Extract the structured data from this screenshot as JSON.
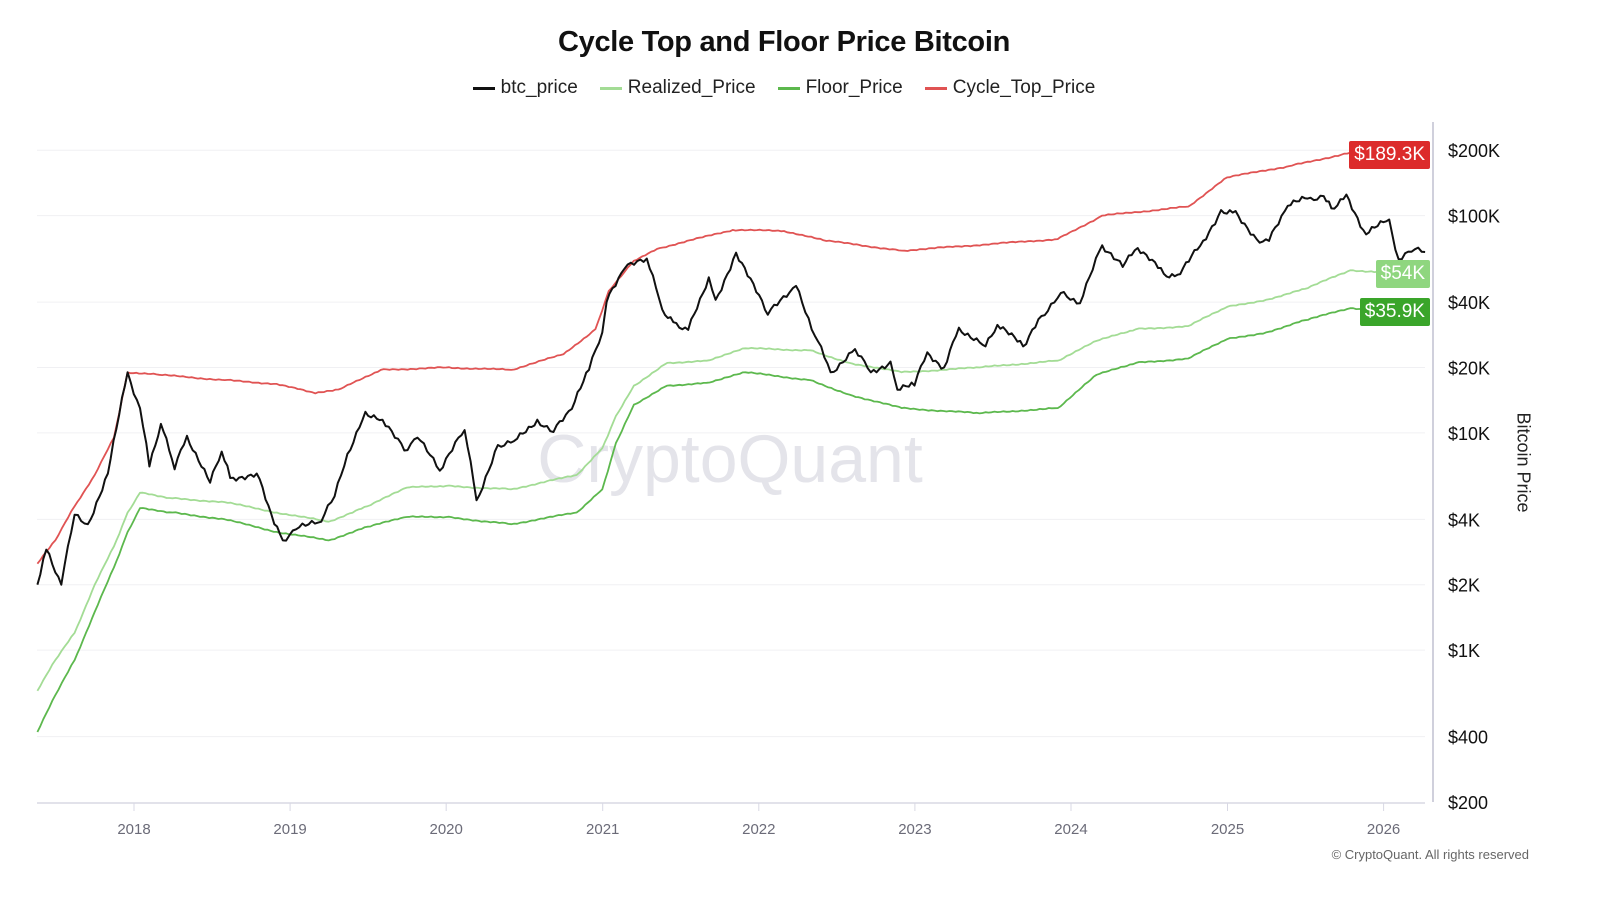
{
  "chart_data": {
    "type": "line",
    "title": "Cycle Top and Floor Price Bitcoin",
    "ylabel": "Bitcoin Price",
    "xlabel": "",
    "y_scale": "log",
    "ylim": [
      200,
      230000
    ],
    "xlim": [
      "2017-05-20",
      "2026-04-08"
    ],
    "grid": true,
    "legend_position": "top",
    "x_ticks": [
      "2018",
      "2019",
      "2020",
      "2021",
      "2022",
      "2023",
      "2024",
      "2025",
      "2026"
    ],
    "y_ticks": [
      {
        "value": 200,
        "label": "$200"
      },
      {
        "value": 400,
        "label": "$400"
      },
      {
        "value": 1000,
        "label": "$1K"
      },
      {
        "value": 2000,
        "label": "$2K"
      },
      {
        "value": 4000,
        "label": "$4K"
      },
      {
        "value": 10000,
        "label": "$10K"
      },
      {
        "value": 20000,
        "label": "$20K"
      },
      {
        "value": 40000,
        "label": "$40K"
      },
      {
        "value": 100000,
        "label": "$100K"
      },
      {
        "value": 200000,
        "label": "$200K"
      }
    ],
    "watermark": "CryptoQuant",
    "series": [
      {
        "name": "btc_price",
        "color": "#111111",
        "last_label": "",
        "points": [
          [
            "2017-05-20",
            2000
          ],
          [
            "2017-06-10",
            2900
          ],
          [
            "2017-07-15",
            2000
          ],
          [
            "2017-08-15",
            4200
          ],
          [
            "2017-09-15",
            3800
          ],
          [
            "2017-11-01",
            6500
          ],
          [
            "2017-12-17",
            19000
          ],
          [
            "2018-01-15",
            13000
          ],
          [
            "2018-02-06",
            7000
          ],
          [
            "2018-03-05",
            11000
          ],
          [
            "2018-04-06",
            6800
          ],
          [
            "2018-05-05",
            9700
          ],
          [
            "2018-06-28",
            5900
          ],
          [
            "2018-07-25",
            8200
          ],
          [
            "2018-08-14",
            6200
          ],
          [
            "2018-10-15",
            6500
          ],
          [
            "2018-11-25",
            3800
          ],
          [
            "2018-12-15",
            3200
          ],
          [
            "2019-01-15",
            3600
          ],
          [
            "2019-03-15",
            3900
          ],
          [
            "2019-04-15",
            5100
          ],
          [
            "2019-05-15",
            8000
          ],
          [
            "2019-06-26",
            12500
          ],
          [
            "2019-08-05",
            11500
          ],
          [
            "2019-09-25",
            8300
          ],
          [
            "2019-10-26",
            9500
          ],
          [
            "2019-12-17",
            6700
          ],
          [
            "2020-02-13",
            10300
          ],
          [
            "2020-03-12",
            4900
          ],
          [
            "2020-05-01",
            8800
          ],
          [
            "2020-06-15",
            9400
          ],
          [
            "2020-08-01",
            11500
          ],
          [
            "2020-09-08",
            10100
          ],
          [
            "2020-10-21",
            12900
          ],
          [
            "2020-11-30",
            19500
          ],
          [
            "2020-12-31",
            29000
          ],
          [
            "2021-01-10",
            40000
          ],
          [
            "2021-02-21",
            57000
          ],
          [
            "2021-04-14",
            63500
          ],
          [
            "2021-05-20",
            37000
          ],
          [
            "2021-06-22",
            32000
          ],
          [
            "2021-07-20",
            29800
          ],
          [
            "2021-09-06",
            52000
          ],
          [
            "2021-09-22",
            41000
          ],
          [
            "2021-11-09",
            67500
          ],
          [
            "2022-01-22",
            35000
          ],
          [
            "2022-03-29",
            47500
          ],
          [
            "2022-05-12",
            28000
          ],
          [
            "2022-06-18",
            19000
          ],
          [
            "2022-08-14",
            24300
          ],
          [
            "2022-09-20",
            19000
          ],
          [
            "2022-11-05",
            21300
          ],
          [
            "2022-11-21",
            15800
          ],
          [
            "2022-12-31",
            16500
          ],
          [
            "2023-01-30",
            23500
          ],
          [
            "2023-03-10",
            20000
          ],
          [
            "2023-04-14",
            30500
          ],
          [
            "2023-06-15",
            25000
          ],
          [
            "2023-07-13",
            31400
          ],
          [
            "2023-09-11",
            25000
          ],
          [
            "2023-10-24",
            34500
          ],
          [
            "2023-12-08",
            44000
          ],
          [
            "2024-01-22",
            39500
          ],
          [
            "2024-03-14",
            73000
          ],
          [
            "2024-05-01",
            58000
          ],
          [
            "2024-06-05",
            71000
          ],
          [
            "2024-08-05",
            54000
          ],
          [
            "2024-09-06",
            53500
          ],
          [
            "2024-10-29",
            72500
          ],
          [
            "2024-12-17",
            106000
          ],
          [
            "2025-01-20",
            105000
          ],
          [
            "2025-03-10",
            78000
          ],
          [
            "2025-04-08",
            76500
          ],
          [
            "2025-05-22",
            111000
          ],
          [
            "2025-07-14",
            121000
          ],
          [
            "2025-08-14",
            123000
          ],
          [
            "2025-09-01",
            108000
          ],
          [
            "2025-10-06",
            125000
          ],
          [
            "2025-11-21",
            82000
          ],
          [
            "2026-01-14",
            96000
          ],
          [
            "2026-02-05",
            63000
          ],
          [
            "2026-03-15",
            70000
          ],
          [
            "2026-04-08",
            68000
          ]
        ]
      },
      {
        "name": "Realized_Price",
        "color": "#a3dc95",
        "last_label": "$54K",
        "badge_color": "#8fd67f",
        "points": [
          [
            "2017-05-20",
            650
          ],
          [
            "2017-07-01",
            900
          ],
          [
            "2017-08-15",
            1200
          ],
          [
            "2017-10-01",
            2000
          ],
          [
            "2017-11-15",
            3000
          ],
          [
            "2017-12-17",
            4300
          ],
          [
            "2018-01-15",
            5300
          ],
          [
            "2018-04-01",
            5000
          ],
          [
            "2018-08-01",
            4800
          ],
          [
            "2018-12-01",
            4300
          ],
          [
            "2019-04-01",
            3900
          ],
          [
            "2019-07-01",
            4600
          ],
          [
            "2019-10-01",
            5600
          ],
          [
            "2020-01-01",
            5700
          ],
          [
            "2020-06-01",
            5500
          ],
          [
            "2020-11-01",
            6400
          ],
          [
            "2020-12-31",
            8500
          ],
          [
            "2021-02-01",
            12000
          ],
          [
            "2021-03-15",
            16500
          ],
          [
            "2021-06-01",
            21000
          ],
          [
            "2021-09-01",
            21500
          ],
          [
            "2021-12-01",
            24500
          ],
          [
            "2022-05-01",
            24000
          ],
          [
            "2022-08-01",
            21000
          ],
          [
            "2022-12-01",
            19000
          ],
          [
            "2023-06-01",
            20000
          ],
          [
            "2023-12-01",
            21500
          ],
          [
            "2024-03-01",
            26500
          ],
          [
            "2024-06-01",
            30000
          ],
          [
            "2024-10-01",
            31000
          ],
          [
            "2024-12-31",
            38000
          ],
          [
            "2025-04-01",
            41000
          ],
          [
            "2025-07-01",
            46000
          ],
          [
            "2025-10-15",
            56000
          ],
          [
            "2026-04-08",
            54000
          ]
        ]
      },
      {
        "name": "Floor_Price",
        "color": "#5cb84d",
        "last_label": "$35.9K",
        "badge_color": "#3aa52a",
        "points": [
          [
            "2017-05-20",
            420
          ],
          [
            "2017-07-01",
            620
          ],
          [
            "2017-08-15",
            900
          ],
          [
            "2017-10-01",
            1500
          ],
          [
            "2017-11-15",
            2400
          ],
          [
            "2017-12-17",
            3500
          ],
          [
            "2018-01-15",
            4500
          ],
          [
            "2018-04-01",
            4300
          ],
          [
            "2018-08-01",
            4000
          ],
          [
            "2018-12-01",
            3500
          ],
          [
            "2019-04-01",
            3200
          ],
          [
            "2019-07-01",
            3700
          ],
          [
            "2019-10-01",
            4100
          ],
          [
            "2020-01-01",
            4100
          ],
          [
            "2020-06-01",
            3800
          ],
          [
            "2020-11-01",
            4300
          ],
          [
            "2020-12-31",
            5500
          ],
          [
            "2021-02-01",
            9000
          ],
          [
            "2021-03-15",
            13500
          ],
          [
            "2021-06-01",
            16500
          ],
          [
            "2021-09-01",
            17000
          ],
          [
            "2021-12-01",
            19000
          ],
          [
            "2022-05-01",
            17500
          ],
          [
            "2022-08-01",
            15000
          ],
          [
            "2022-12-01",
            13000
          ],
          [
            "2023-06-01",
            12300
          ],
          [
            "2023-12-01",
            13000
          ],
          [
            "2024-03-01",
            18500
          ],
          [
            "2024-06-01",
            21000
          ],
          [
            "2024-10-01",
            22000
          ],
          [
            "2024-12-31",
            27000
          ],
          [
            "2025-04-01",
            29000
          ],
          [
            "2025-07-01",
            33000
          ],
          [
            "2025-10-15",
            37500
          ],
          [
            "2026-04-08",
            35900
          ]
        ]
      },
      {
        "name": "Cycle_Top_Price",
        "color": "#e05353",
        "last_label": "$189.3K",
        "badge_color": "#dc2b2b",
        "points": [
          [
            "2017-05-20",
            2500
          ],
          [
            "2017-07-01",
            3200
          ],
          [
            "2017-08-15",
            4600
          ],
          [
            "2017-10-01",
            6400
          ],
          [
            "2017-11-15",
            9500
          ],
          [
            "2017-12-17",
            19000
          ],
          [
            "2018-03-01",
            18500
          ],
          [
            "2018-08-01",
            17500
          ],
          [
            "2018-12-01",
            16800
          ],
          [
            "2019-03-01",
            15200
          ],
          [
            "2019-05-01",
            16000
          ],
          [
            "2019-08-01",
            19500
          ],
          [
            "2020-01-01",
            20000
          ],
          [
            "2020-06-01",
            19500
          ],
          [
            "2020-10-01",
            23000
          ],
          [
            "2020-12-15",
            30000
          ],
          [
            "2021-01-15",
            45000
          ],
          [
            "2021-03-15",
            62000
          ],
          [
            "2021-05-15",
            71000
          ],
          [
            "2021-11-01",
            86000
          ],
          [
            "2022-03-01",
            85000
          ],
          [
            "2022-06-01",
            77000
          ],
          [
            "2022-12-01",
            69000
          ],
          [
            "2023-12-01",
            78000
          ],
          [
            "2024-03-14",
            100000
          ],
          [
            "2024-10-01",
            110000
          ],
          [
            "2024-12-31",
            150000
          ],
          [
            "2025-06-01",
            170000
          ],
          [
            "2025-10-15",
            195000
          ],
          [
            "2026-04-08",
            189300
          ]
        ]
      }
    ]
  },
  "footer": {
    "copyright": "© CryptoQuant. All rights reserved"
  }
}
